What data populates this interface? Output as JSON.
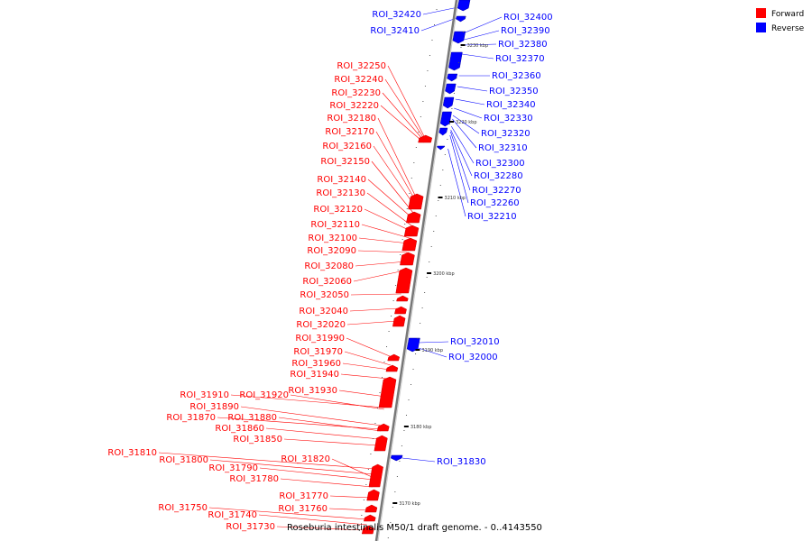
{
  "caption": "Roseburia intestinalis M50/1 draft genome. - 0..4143550",
  "legend": [
    {
      "label": "Forward",
      "color": "#ff0000"
    },
    {
      "label": "Reverse",
      "color": "#0000ff"
    }
  ],
  "colors": {
    "forward": "#ff0000",
    "reverse": "#0000ff",
    "backbone": "#888888"
  },
  "ticks": [
    "3230 kbp",
    "3220 kbp",
    "3210 kbp",
    "3200 kbp",
    "3190 kbp",
    "3180 kbp",
    "3170 kbp"
  ],
  "forward_labels": [
    "ROI_32250",
    "ROI_32240",
    "ROI_32230",
    "ROI_32220",
    "ROI_32180",
    "ROI_32170",
    "ROI_32160",
    "ROI_32150",
    "ROI_32140",
    "ROI_32130",
    "ROI_32120",
    "ROI_32110",
    "ROI_32100",
    "ROI_32090",
    "ROI_32080",
    "ROI_32060",
    "ROI_32050",
    "ROI_32040",
    "ROI_32020",
    "ROI_31990",
    "ROI_31970",
    "ROI_31960",
    "ROI_31940",
    "ROI_31930",
    "ROI_31910",
    "ROI_31920",
    "ROI_31890",
    "ROI_31870",
    "ROI_31880",
    "ROI_31860",
    "ROI_31850",
    "ROI_31810",
    "ROI_31800",
    "ROI_31820",
    "ROI_31790",
    "ROI_31780",
    "ROI_31770",
    "ROI_31760",
    "ROI_31750",
    "ROI_31740",
    "ROI_31730"
  ],
  "reverse_labels_left": [
    "ROI_32420",
    "ROI_32410"
  ],
  "reverse_labels_right": [
    "ROI_32400",
    "ROI_32390",
    "ROI_32380",
    "ROI_32370",
    "ROI_32360",
    "ROI_32350",
    "ROI_32340",
    "ROI_32330",
    "ROI_32320",
    "ROI_32310",
    "ROI_32300",
    "ROI_32280",
    "ROI_32270",
    "ROI_32260",
    "ROI_32210",
    "ROI_32010",
    "ROI_32000",
    "ROI_31830"
  ]
}
